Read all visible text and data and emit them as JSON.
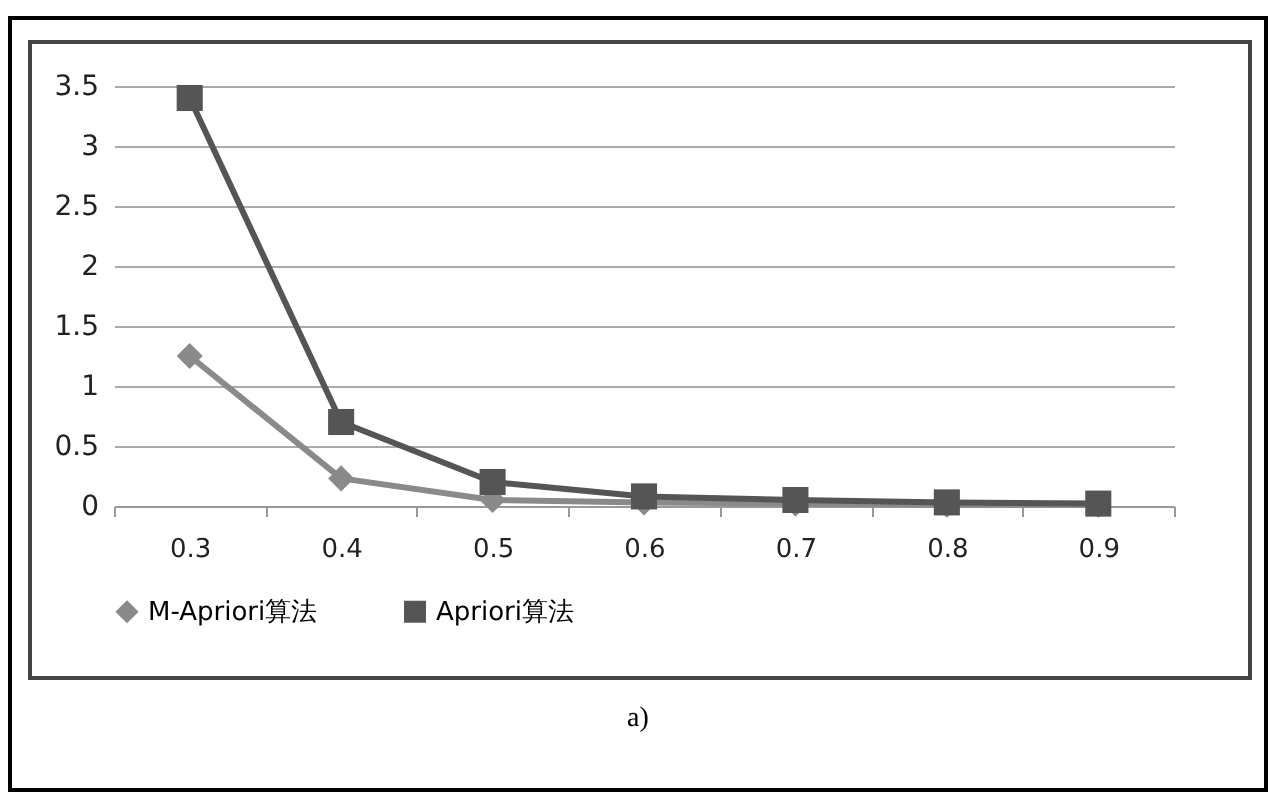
{
  "chart_data": {
    "type": "line",
    "categories": [
      "0.3",
      "0.4",
      "0.5",
      "0.6",
      "0.7",
      "0.8",
      "0.9"
    ],
    "series": [
      {
        "name": "M-Apriori算法",
        "color": "#8a8a8a",
        "marker": "diamond",
        "values": [
          1.25,
          0.23,
          0.05,
          0.03,
          0.02,
          0.01,
          0.01
        ]
      },
      {
        "name": "Apriori算法",
        "color": "#555555",
        "marker": "square",
        "values": [
          3.4,
          0.7,
          0.2,
          0.08,
          0.05,
          0.03,
          0.02
        ]
      }
    ],
    "ylim": [
      0,
      3.5
    ],
    "yticks": [
      0,
      0.5,
      1,
      1.5,
      2,
      2.5,
      3,
      3.5
    ],
    "grid": "y",
    "legend": "bottom",
    "line_style": "solid",
    "annotations": [
      "a)"
    ]
  }
}
